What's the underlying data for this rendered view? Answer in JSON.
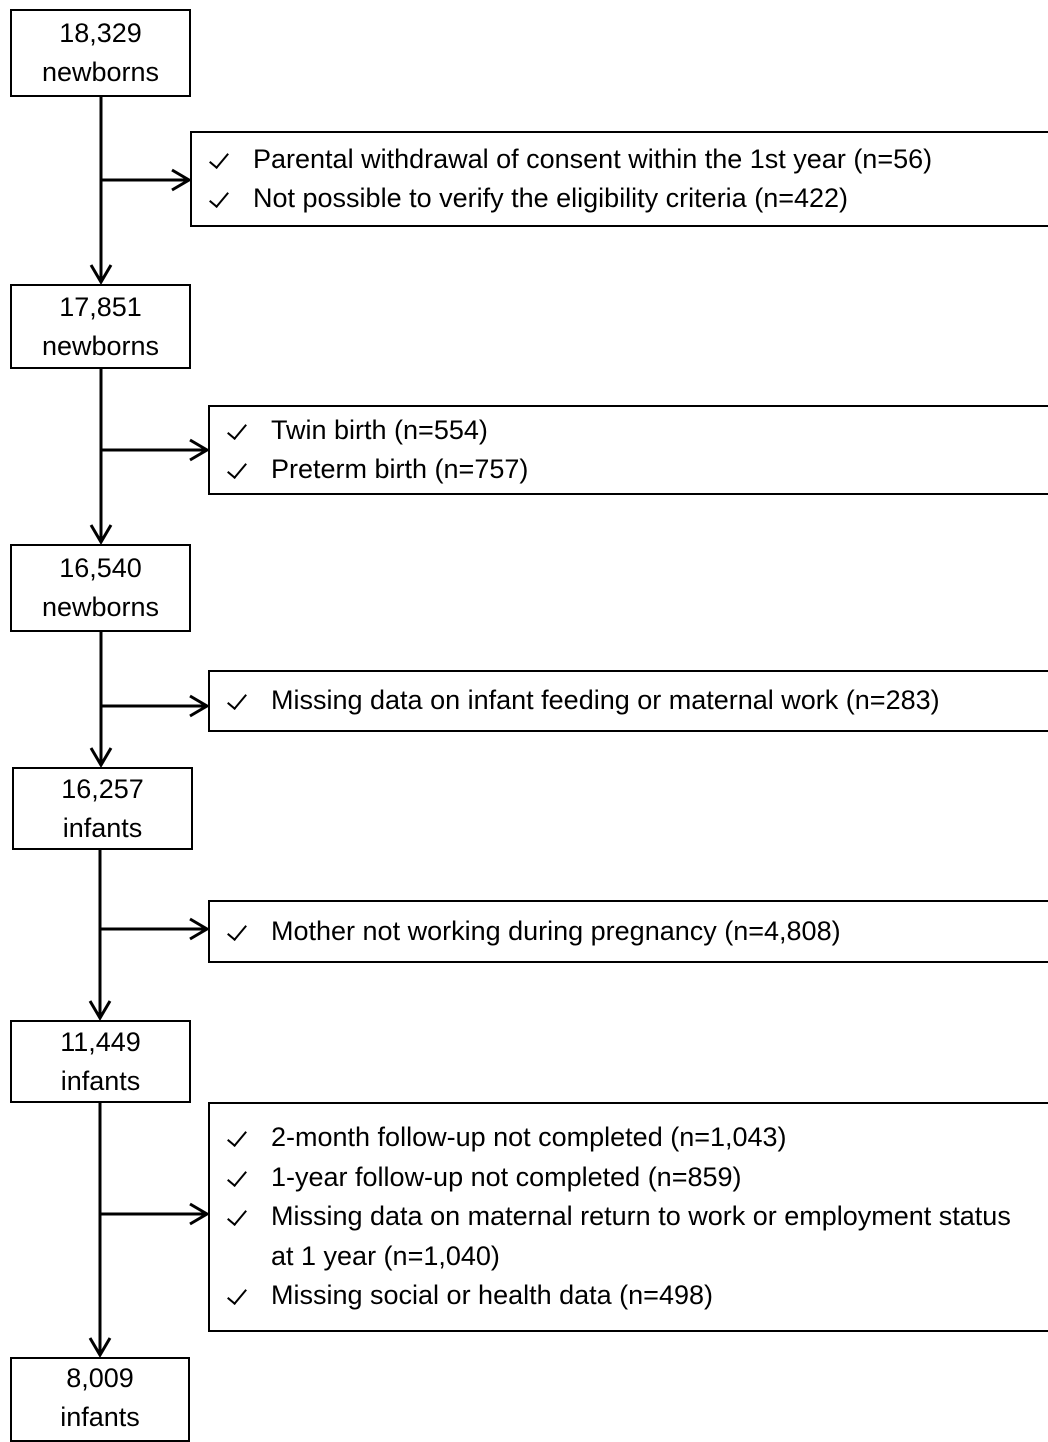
{
  "nodes": [
    {
      "count": "18,329",
      "unit": "newborns"
    },
    {
      "count": "17,851",
      "unit": "newborns"
    },
    {
      "count": "16,540",
      "unit": "newborns"
    },
    {
      "count": "16,257",
      "unit": "infants"
    },
    {
      "count": "11,449",
      "unit": "infants"
    },
    {
      "count": "8,009",
      "unit": "infants"
    }
  ],
  "exclusions": [
    {
      "items": [
        "Parental withdrawal of consent within the 1st year (n=56)",
        "Not possible to verify the eligibility criteria (n=422)"
      ]
    },
    {
      "items": [
        "Twin birth (n=554)",
        "Preterm birth (n=757)"
      ]
    },
    {
      "items": [
        "Missing data on infant feeding or maternal work (n=283)"
      ]
    },
    {
      "items": [
        "Mother not working during pregnancy (n=4,808)"
      ]
    },
    {
      "items": [
        "2-month follow-up not completed (n=1,043)",
        "1-year follow-up not completed (n=859)",
        "Missing data on maternal return to work or employment status at 1 year (n=1,040)",
        "Missing social or health data (n=498)"
      ]
    }
  ]
}
